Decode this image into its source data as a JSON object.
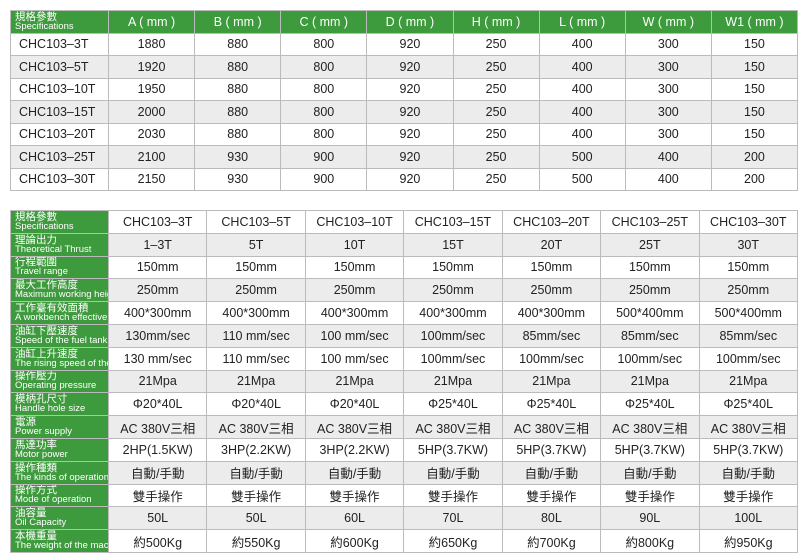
{
  "table1": {
    "header_label": {
      "zh": "規格參數",
      "en": "Specifications"
    },
    "columns": [
      "A ( mm )",
      "B ( mm )",
      "C ( mm )",
      "D ( mm )",
      "H ( mm )",
      "L ( mm )",
      "W ( mm )",
      "W1 ( mm )"
    ],
    "rows": [
      [
        "CHC103–3T",
        "1880",
        "880",
        "800",
        "920",
        "250",
        "400",
        "300",
        "150"
      ],
      [
        "CHC103–5T",
        "1920",
        "880",
        "800",
        "920",
        "250",
        "400",
        "300",
        "150"
      ],
      [
        "CHC103–10T",
        "1950",
        "880",
        "800",
        "920",
        "250",
        "400",
        "300",
        "150"
      ],
      [
        "CHC103–15T",
        "2000",
        "880",
        "800",
        "920",
        "250",
        "400",
        "300",
        "150"
      ],
      [
        "CHC103–20T",
        "2030",
        "880",
        "800",
        "920",
        "250",
        "400",
        "300",
        "150"
      ],
      [
        "CHC103–25T",
        "2100",
        "930",
        "900",
        "920",
        "250",
        "500",
        "400",
        "200"
      ],
      [
        "CHC103–30T",
        "2150",
        "930",
        "900",
        "920",
        "250",
        "500",
        "400",
        "200"
      ]
    ]
  },
  "table2": {
    "header_label": {
      "zh": "規格參數",
      "en": "Specifications"
    },
    "columns": [
      "CHC103–3T",
      "CHC103–5T",
      "CHC103–10T",
      "CHC103–15T",
      "CHC103–20T",
      "CHC103–25T",
      "CHC103–30T"
    ],
    "rows": [
      {
        "zh": "理論出力",
        "en": "Theoretical Thrust",
        "cells": [
          "1–3T",
          "5T",
          "10T",
          "15T",
          "20T",
          "25T",
          "30T"
        ]
      },
      {
        "zh": "行程範圍",
        "en": "Travel range",
        "cells": [
          "150mm",
          "150mm",
          "150mm",
          "150mm",
          "150mm",
          "150mm",
          "150mm"
        ]
      },
      {
        "zh": "最大工作高度",
        "en": "Maximum working height",
        "cells": [
          "250mm",
          "250mm",
          "250mm",
          "250mm",
          "250mm",
          "250mm",
          "250mm"
        ]
      },
      {
        "zh": "工作臺有效面積",
        "en": "A workbench effective area",
        "cells": [
          "400*300mm",
          "400*300mm",
          "400*300mm",
          "400*300mm",
          "400*300mm",
          "500*400mm",
          "500*400mm"
        ]
      },
      {
        "zh": "油缸下壓速度",
        "en": "Speed of the fuel tank under pressure",
        "cells": [
          "130mm/sec",
          "110 mm/sec",
          "100 mm/sec",
          "100mm/sec",
          "85mm/sec",
          "85mm/sec",
          "85mm/sec"
        ]
      },
      {
        "zh": "油缸上升速度",
        "en": "The rising speed of the cylinder",
        "cells": [
          "130 mm/sec",
          "110 mm/sec",
          "100 mm/sec",
          "100mm/sec",
          "100mm/sec",
          "100mm/sec",
          "100mm/sec"
        ]
      },
      {
        "zh": "操作壓力",
        "en": "Operating pressure",
        "cells": [
          "21Mpa",
          "21Mpa",
          "21Mpa",
          "21Mpa",
          "21Mpa",
          "21Mpa",
          "21Mpa"
        ]
      },
      {
        "zh": "模柄孔尺寸",
        "en": "Handle hole size",
        "cells": [
          "Φ20*40L",
          "Φ20*40L",
          "Φ20*40L",
          "Φ25*40L",
          "Φ25*40L",
          "Φ25*40L",
          "Φ25*40L"
        ]
      },
      {
        "zh": "電源",
        "en": "Power supply",
        "cells": [
          "AC 380V三相",
          "AC 380V三相",
          "AC 380V三相",
          "AC 380V三相",
          "AC 380V三相",
          "AC 380V三相",
          "AC 380V三相"
        ]
      },
      {
        "zh": "馬達功率",
        "en": "Motor power",
        "cells": [
          "2HP(1.5KW)",
          "3HP(2.2KW)",
          "3HP(2.2KW)",
          "5HP(3.7KW)",
          "5HP(3.7KW)",
          "5HP(3.7KW)",
          "5HP(3.7KW)"
        ]
      },
      {
        "zh": "操作種類",
        "en": "The kinds of operations",
        "cells": [
          "自動/手動",
          "自動/手動",
          "自動/手動",
          "自動/手動",
          "自動/手動",
          "自動/手動",
          "自動/手動"
        ]
      },
      {
        "zh": "操作方式",
        "en": "Mode of operation",
        "cells": [
          "雙手操作",
          "雙手操作",
          "雙手操作",
          "雙手操作",
          "雙手操作",
          "雙手操作",
          "雙手操作"
        ]
      },
      {
        "zh": "油容量",
        "en": "Oil Capacity",
        "cells": [
          "50L",
          "50L",
          "60L",
          "70L",
          "80L",
          "90L",
          "100L"
        ]
      },
      {
        "zh": "本機重量",
        "en": "The weight of the machine",
        "cells": [
          "約500Kg",
          "約550Kg",
          "約600Kg",
          "約650Kg",
          "約700Kg",
          "約800Kg",
          "約950Kg"
        ]
      }
    ]
  }
}
